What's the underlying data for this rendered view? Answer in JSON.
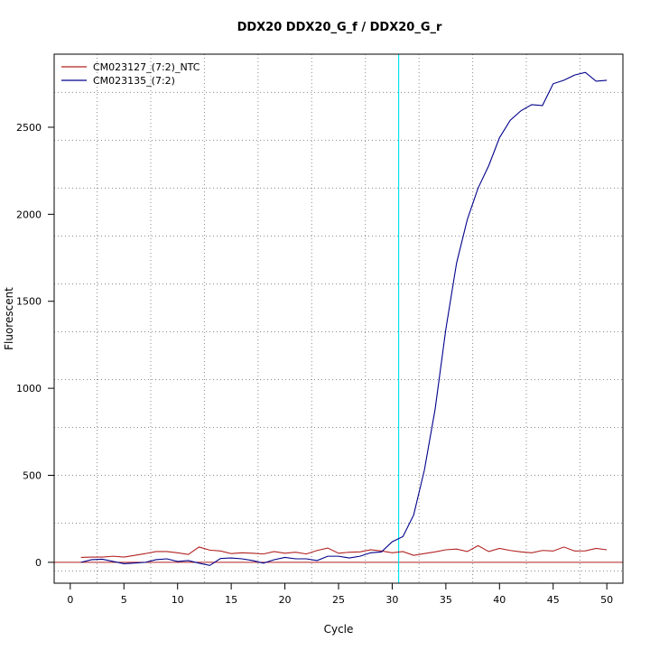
{
  "chart_data": {
    "type": "line",
    "title": "DDX20  DDX20_G_f / DDX20_G_r",
    "xlabel": "Cycle",
    "ylabel": "Fluorescent",
    "xlim": [
      -1.5,
      51.5
    ],
    "ylim": [
      -120,
      2920
    ],
    "x_ticks": [
      0,
      5,
      10,
      15,
      20,
      25,
      30,
      35,
      40,
      45,
      50
    ],
    "y_ticks": [
      0,
      500,
      1000,
      1500,
      2000,
      2500
    ],
    "grid": true,
    "legend_position": "top-left",
    "threshold_cycle": 30.6,
    "threshold_color": "#00e5ee",
    "baseline_value": 0,
    "baseline_color": "#b22222",
    "x": [
      1,
      2,
      3,
      4,
      5,
      6,
      7,
      8,
      9,
      10,
      11,
      12,
      13,
      14,
      15,
      16,
      17,
      18,
      19,
      20,
      21,
      22,
      23,
      24,
      25,
      26,
      27,
      28,
      29,
      30,
      31,
      32,
      33,
      34,
      35,
      36,
      37,
      38,
      39,
      40,
      41,
      42,
      43,
      44,
      45,
      46,
      47,
      48,
      49,
      50
    ],
    "series": [
      {
        "name": "CM023127_(7:2)_NTC",
        "color": "#b22222",
        "values": [
          28,
          30,
          30,
          35,
          30,
          40,
          50,
          62,
          62,
          55,
          45,
          88,
          70,
          65,
          50,
          55,
          52,
          48,
          62,
          52,
          58,
          48,
          68,
          82,
          52,
          58,
          60,
          72,
          65,
          55,
          62,
          40,
          50,
          60,
          72,
          76,
          62,
          96,
          62,
          80,
          68,
          60,
          55,
          68,
          65,
          88,
          65,
          66,
          80,
          72
        ]
      },
      {
        "name": "CM023135_(7:2)",
        "color": "#00008b",
        "values": [
          0,
          15,
          18,
          5,
          -8,
          -4,
          0,
          15,
          20,
          5,
          10,
          -5,
          -18,
          22,
          25,
          20,
          10,
          -5,
          15,
          28,
          20,
          20,
          10,
          35,
          35,
          25,
          35,
          55,
          60,
          118,
          148,
          272,
          530,
          880,
          1340,
          1720,
          1970,
          2150,
          2280,
          2440,
          2540,
          2595,
          2630,
          2625,
          2750,
          2770,
          2800,
          2815,
          2765,
          2770
        ]
      }
    ]
  }
}
